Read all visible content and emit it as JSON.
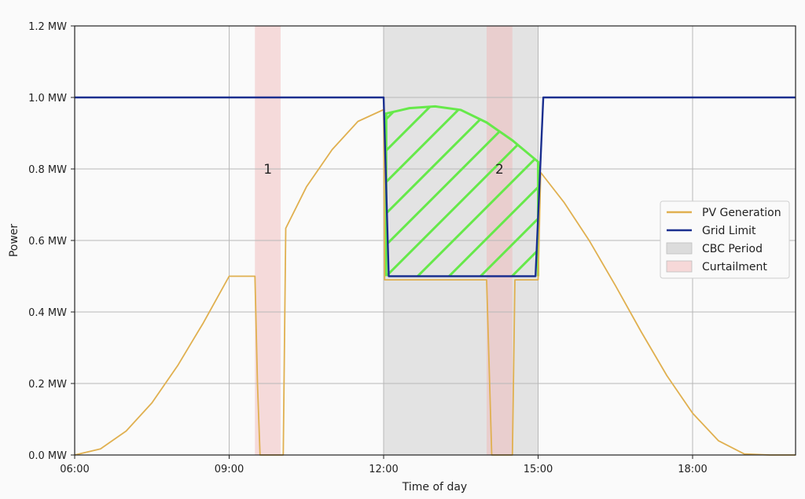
{
  "chart_data": {
    "type": "line",
    "xlabel": "Time of day",
    "ylabel": "Power",
    "xlim": [
      6,
      20
    ],
    "ylim": [
      0,
      1.2
    ],
    "x_ticks": [
      6,
      9,
      12,
      15,
      18
    ],
    "x_tick_labels": [
      "06:00",
      "09:00",
      "12:00",
      "15:00",
      "18:00"
    ],
    "y_ticks": [
      0,
      0.2,
      0.4,
      0.6,
      0.8,
      1.0,
      1.2
    ],
    "y_tick_labels": [
      "0.0 MW",
      "0.2 MW",
      "0.4 MW",
      "0.6 MW",
      "0.8 MW",
      "1.0 MW",
      "1.2 MW"
    ],
    "grid": true,
    "legend_position": "center-right",
    "series": [
      {
        "name": "PV Generation",
        "color": "#e0b050",
        "x": [
          6.0,
          6.5,
          7.0,
          7.5,
          8.0,
          8.5,
          9.0,
          9.5,
          9.55,
          9.6,
          9.95,
          10.05,
          10.1,
          10.5,
          11.0,
          11.5,
          12.0,
          12.02,
          14.0,
          14.1,
          14.5,
          14.55,
          15.0,
          15.05,
          15.5,
          16.0,
          16.5,
          17.0,
          17.5,
          18.0,
          18.5,
          19.0,
          19.5,
          20.0
        ],
        "y": [
          0.0,
          0.017,
          0.067,
          0.146,
          0.25,
          0.37,
          0.5,
          0.5,
          0.2,
          0.0,
          0.0,
          0.0,
          0.634,
          0.75,
          0.854,
          0.933,
          0.966,
          0.49,
          0.49,
          0.0,
          0.0,
          0.49,
          0.49,
          0.79,
          0.707,
          0.598,
          0.474,
          0.345,
          0.222,
          0.117,
          0.04,
          0.003,
          0.0,
          0.0
        ]
      },
      {
        "name": "Grid Limit",
        "color": "#1a2f8f",
        "x": [
          6.0,
          12.0,
          12.1,
          14.95,
          15.1,
          20.0
        ],
        "y": [
          1.0,
          1.0,
          0.5,
          0.5,
          1.0,
          1.0
        ]
      }
    ],
    "spans": [
      {
        "name": "CBC Period",
        "x0": 12.0,
        "x1": 15.0,
        "color": "#c8c8c8",
        "opacity": 0.45
      },
      {
        "name": "Curtailment",
        "x0": 9.5,
        "x1": 10.0,
        "color": "#f0b4b4",
        "opacity": 0.45
      },
      {
        "name": "Curtailment",
        "x0": 14.0,
        "x1": 14.5,
        "color": "#f0b4b4",
        "opacity": 0.45
      }
    ],
    "hatched_region": {
      "color": "#66e94a",
      "top_curve": {
        "x": [
          12.05,
          12.5,
          13.0,
          13.5,
          14.0,
          14.5,
          15.0
        ],
        "y": [
          0.955,
          0.97,
          0.975,
          0.965,
          0.93,
          0.88,
          0.82
        ]
      },
      "bottom": 0.5
    },
    "annotations": [
      {
        "text": "1",
        "x": 9.75,
        "y": 0.8
      },
      {
        "text": "2",
        "x": 14.25,
        "y": 0.8
      }
    ],
    "legend": [
      {
        "label": "PV Generation",
        "kind": "line",
        "color": "#e0b050"
      },
      {
        "label": "Grid Limit",
        "kind": "line",
        "color": "#1a2f8f"
      },
      {
        "label": "CBC Period",
        "kind": "patch",
        "color": "#dcdcdc"
      },
      {
        "label": "Curtailment",
        "kind": "patch",
        "color": "#f6d8d8"
      }
    ]
  }
}
